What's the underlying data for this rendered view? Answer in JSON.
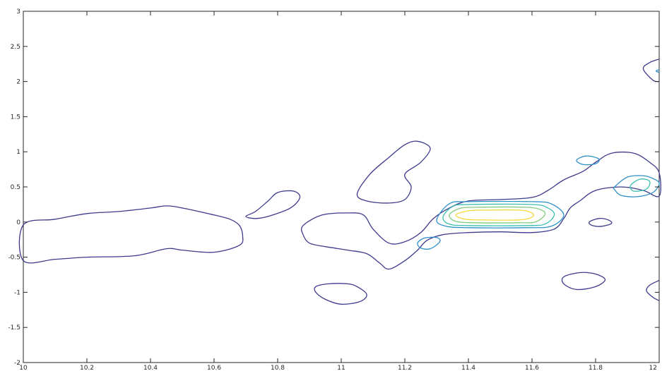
{
  "chart_data": {
    "type": "contour",
    "title": "",
    "xlabel": "",
    "ylabel": "",
    "xlim": [
      10,
      12
    ],
    "ylim": [
      -2,
      3
    ],
    "xticks": [
      10,
      10.2,
      10.4,
      10.6,
      10.8,
      11,
      11.2,
      11.4,
      11.6,
      11.8,
      12
    ],
    "yticks": [
      -2,
      -1.5,
      -1,
      -0.5,
      0,
      0.5,
      1,
      1.5,
      2,
      2.5,
      3
    ],
    "xtick_labels": [
      "10",
      "10.2",
      "10.4",
      "10.6",
      "10.8",
      "11",
      "11.2",
      "11.4",
      "11.6",
      "11.8",
      "12"
    ],
    "ytick_labels": [
      "-2",
      "-1.5",
      "-1",
      "-0.5",
      "0",
      "0.5",
      "1",
      "1.5",
      "2",
      "2.5",
      "3"
    ],
    "grid": false,
    "legend": "none",
    "level_colors": [
      "#3d3a8c",
      "#2f8fc7",
      "#3bbfb0",
      "#7fcc7a",
      "#f5d940"
    ],
    "contours": [
      {
        "level": 1,
        "closed": true,
        "points": [
          [
            10,
            -0.04
          ],
          [
            10.1,
            0.04
          ],
          [
            10.2,
            0.12
          ],
          [
            10.3,
            0.15
          ],
          [
            10.4,
            0.2
          ],
          [
            10.45,
            0.23
          ],
          [
            10.5,
            0.2
          ],
          [
            10.6,
            0.1
          ],
          [
            10.65,
            0.04
          ],
          [
            10.68,
            -0.05
          ],
          [
            10.69,
            -0.2
          ],
          [
            10.68,
            -0.33
          ],
          [
            10.6,
            -0.43
          ],
          [
            10.5,
            -0.4
          ],
          [
            10.45,
            -0.38
          ],
          [
            10.35,
            -0.48
          ],
          [
            10.2,
            -0.5
          ],
          [
            10.1,
            -0.53
          ],
          [
            10,
            -0.55
          ]
        ]
      },
      {
        "level": 1,
        "closed": true,
        "points": [
          [
            10.73,
            0.15
          ],
          [
            10.77,
            0.3
          ],
          [
            10.8,
            0.42
          ],
          [
            10.85,
            0.44
          ],
          [
            10.87,
            0.35
          ],
          [
            10.84,
            0.2
          ],
          [
            10.77,
            0.08
          ],
          [
            10.73,
            0.05
          ],
          [
            10.7,
            0.08
          ]
        ]
      },
      {
        "level": 1,
        "closed": true,
        "points": [
          [
            11.05,
            0.4
          ],
          [
            11.09,
            0.68
          ],
          [
            11.15,
            0.92
          ],
          [
            11.2,
            1.1
          ],
          [
            11.24,
            1.15
          ],
          [
            11.28,
            1.05
          ],
          [
            11.25,
            0.85
          ],
          [
            11.2,
            0.68
          ],
          [
            11.22,
            0.5
          ],
          [
            11.2,
            0.32
          ],
          [
            11.15,
            0.27
          ],
          [
            11.08,
            0.3
          ]
        ]
      },
      {
        "level": 1,
        "closed": true,
        "points": [
          [
            10.88,
            -0.05
          ],
          [
            10.94,
            0.1
          ],
          [
            11.02,
            0.13
          ],
          [
            11.07,
            0.1
          ],
          [
            11.1,
            -0.1
          ],
          [
            11.15,
            -0.3
          ],
          [
            11.2,
            -0.28
          ],
          [
            11.25,
            -0.15
          ],
          [
            11.29,
            0.05
          ],
          [
            11.34,
            0.2
          ],
          [
            11.4,
            0.3
          ],
          [
            11.5,
            0.32
          ],
          [
            11.6,
            0.35
          ],
          [
            11.65,
            0.45
          ],
          [
            11.7,
            0.6
          ],
          [
            11.76,
            0.72
          ],
          [
            11.8,
            0.85
          ],
          [
            11.85,
            0.98
          ],
          [
            11.92,
            0.98
          ],
          [
            11.97,
            0.85
          ],
          [
            12,
            0.7
          ],
          [
            12,
            0.37
          ],
          [
            11.95,
            0.45
          ],
          [
            11.88,
            0.5
          ],
          [
            11.8,
            0.45
          ],
          [
            11.75,
            0.3
          ],
          [
            11.72,
            0.2
          ],
          [
            11.7,
            0.05
          ],
          [
            11.67,
            -0.1
          ],
          [
            11.6,
            -0.15
          ],
          [
            11.5,
            -0.14
          ],
          [
            11.4,
            -0.15
          ],
          [
            11.32,
            -0.18
          ],
          [
            11.27,
            -0.26
          ],
          [
            11.24,
            -0.4
          ],
          [
            11.2,
            -0.55
          ],
          [
            11.15,
            -0.67
          ],
          [
            11.12,
            -0.58
          ],
          [
            11.08,
            -0.45
          ],
          [
            11.02,
            -0.4
          ],
          [
            10.95,
            -0.35
          ],
          [
            10.9,
            -0.3
          ],
          [
            10.88,
            -0.18
          ]
        ]
      },
      {
        "level": 1,
        "closed": true,
        "points": [
          [
            10.92,
            -0.92
          ],
          [
            10.96,
            -0.88
          ],
          [
            11.02,
            -0.88
          ],
          [
            11.05,
            -0.92
          ],
          [
            11.08,
            -1.03
          ],
          [
            11.06,
            -1.13
          ],
          [
            11.0,
            -1.17
          ],
          [
            10.95,
            -1.1
          ],
          [
            10.92,
            -1.0
          ]
        ]
      },
      {
        "level": 1,
        "closed": true,
        "points": [
          [
            11.7,
            -0.78
          ],
          [
            11.75,
            -0.72
          ],
          [
            11.8,
            -0.74
          ],
          [
            11.83,
            -0.82
          ],
          [
            11.8,
            -0.92
          ],
          [
            11.74,
            -0.96
          ],
          [
            11.7,
            -0.88
          ]
        ]
      },
      {
        "level": 1,
        "closed": true,
        "points": [
          [
            11.78,
            0.0
          ],
          [
            11.81,
            0.05
          ],
          [
            11.84,
            0.03
          ],
          [
            11.85,
            -0.02
          ],
          [
            11.82,
            -0.06
          ],
          [
            11.79,
            -0.05
          ]
        ]
      },
      {
        "level": 1,
        "closed": false,
        "points": [
          [
            12,
            2.32
          ],
          [
            11.97,
            2.27
          ],
          [
            11.95,
            2.18
          ],
          [
            11.98,
            2.02
          ],
          [
            12,
            2.0
          ]
        ]
      },
      {
        "level": 1,
        "closed": false,
        "points": [
          [
            12,
            -0.83
          ],
          [
            11.97,
            -0.9
          ],
          [
            11.96,
            -0.98
          ],
          [
            11.98,
            -1.07
          ],
          [
            12,
            -1.12
          ]
        ]
      },
      {
        "level": 2,
        "closed": true,
        "points": [
          [
            11.74,
            0.88
          ],
          [
            11.77,
            0.94
          ],
          [
            11.81,
            0.9
          ],
          [
            11.8,
            0.83
          ],
          [
            11.76,
            0.82
          ]
        ]
      },
      {
        "level": 2,
        "closed": true,
        "points": [
          [
            11.86,
            0.5
          ],
          [
            11.9,
            0.64
          ],
          [
            11.95,
            0.66
          ],
          [
            11.98,
            0.62
          ],
          [
            12,
            0.55
          ],
          [
            11.98,
            0.42
          ],
          [
            11.93,
            0.36
          ],
          [
            11.88,
            0.38
          ],
          [
            11.86,
            0.46
          ]
        ]
      },
      {
        "level": 2,
        "closed": true,
        "points": [
          [
            11.24,
            -0.3
          ],
          [
            11.26,
            -0.23
          ],
          [
            11.3,
            -0.22
          ],
          [
            11.31,
            -0.28
          ],
          [
            11.28,
            -0.38
          ],
          [
            11.25,
            -0.37
          ]
        ]
      },
      {
        "level": 2,
        "closed": false,
        "points": [
          [
            12,
            2.17
          ],
          [
            11.99,
            2.15
          ],
          [
            12,
            2.13
          ]
        ]
      },
      {
        "level": 2,
        "closed": true,
        "points": [
          [
            11.3,
            0.03
          ],
          [
            11.34,
            0.26
          ],
          [
            11.4,
            0.29
          ],
          [
            11.6,
            0.29
          ],
          [
            11.66,
            0.26
          ],
          [
            11.7,
            0.1
          ],
          [
            11.66,
            -0.06
          ],
          [
            11.58,
            -0.08
          ],
          [
            11.4,
            -0.08
          ],
          [
            11.33,
            -0.06
          ]
        ]
      },
      {
        "level": 3,
        "closed": true,
        "points": [
          [
            11.32,
            0.07
          ],
          [
            11.35,
            0.22
          ],
          [
            11.4,
            0.25
          ],
          [
            11.6,
            0.25
          ],
          [
            11.65,
            0.2
          ],
          [
            11.67,
            0.1
          ],
          [
            11.64,
            -0.03
          ],
          [
            11.58,
            -0.05
          ],
          [
            11.4,
            -0.05
          ],
          [
            11.34,
            -0.03
          ]
        ]
      },
      {
        "level": 3,
        "closed": true,
        "points": [
          [
            11.91,
            0.52
          ],
          [
            11.94,
            0.61
          ],
          [
            11.97,
            0.58
          ],
          [
            11.96,
            0.47
          ],
          [
            11.92,
            0.44
          ]
        ]
      },
      {
        "level": 4,
        "closed": true,
        "points": [
          [
            11.34,
            0.1
          ],
          [
            11.37,
            0.19
          ],
          [
            11.42,
            0.21
          ],
          [
            11.58,
            0.21
          ],
          [
            11.63,
            0.17
          ],
          [
            11.64,
            0.1
          ],
          [
            11.61,
            0.0
          ],
          [
            11.56,
            -0.01
          ],
          [
            11.42,
            -0.01
          ],
          [
            11.36,
            0.01
          ]
        ]
      },
      {
        "level": 5,
        "closed": true,
        "points": [
          [
            11.36,
            0.1
          ],
          [
            11.4,
            0.16
          ],
          [
            11.45,
            0.17
          ],
          [
            11.56,
            0.17
          ],
          [
            11.6,
            0.13
          ],
          [
            11.6,
            0.07
          ],
          [
            11.56,
            0.03
          ],
          [
            11.45,
            0.03
          ],
          [
            11.39,
            0.04
          ]
        ]
      }
    ]
  }
}
